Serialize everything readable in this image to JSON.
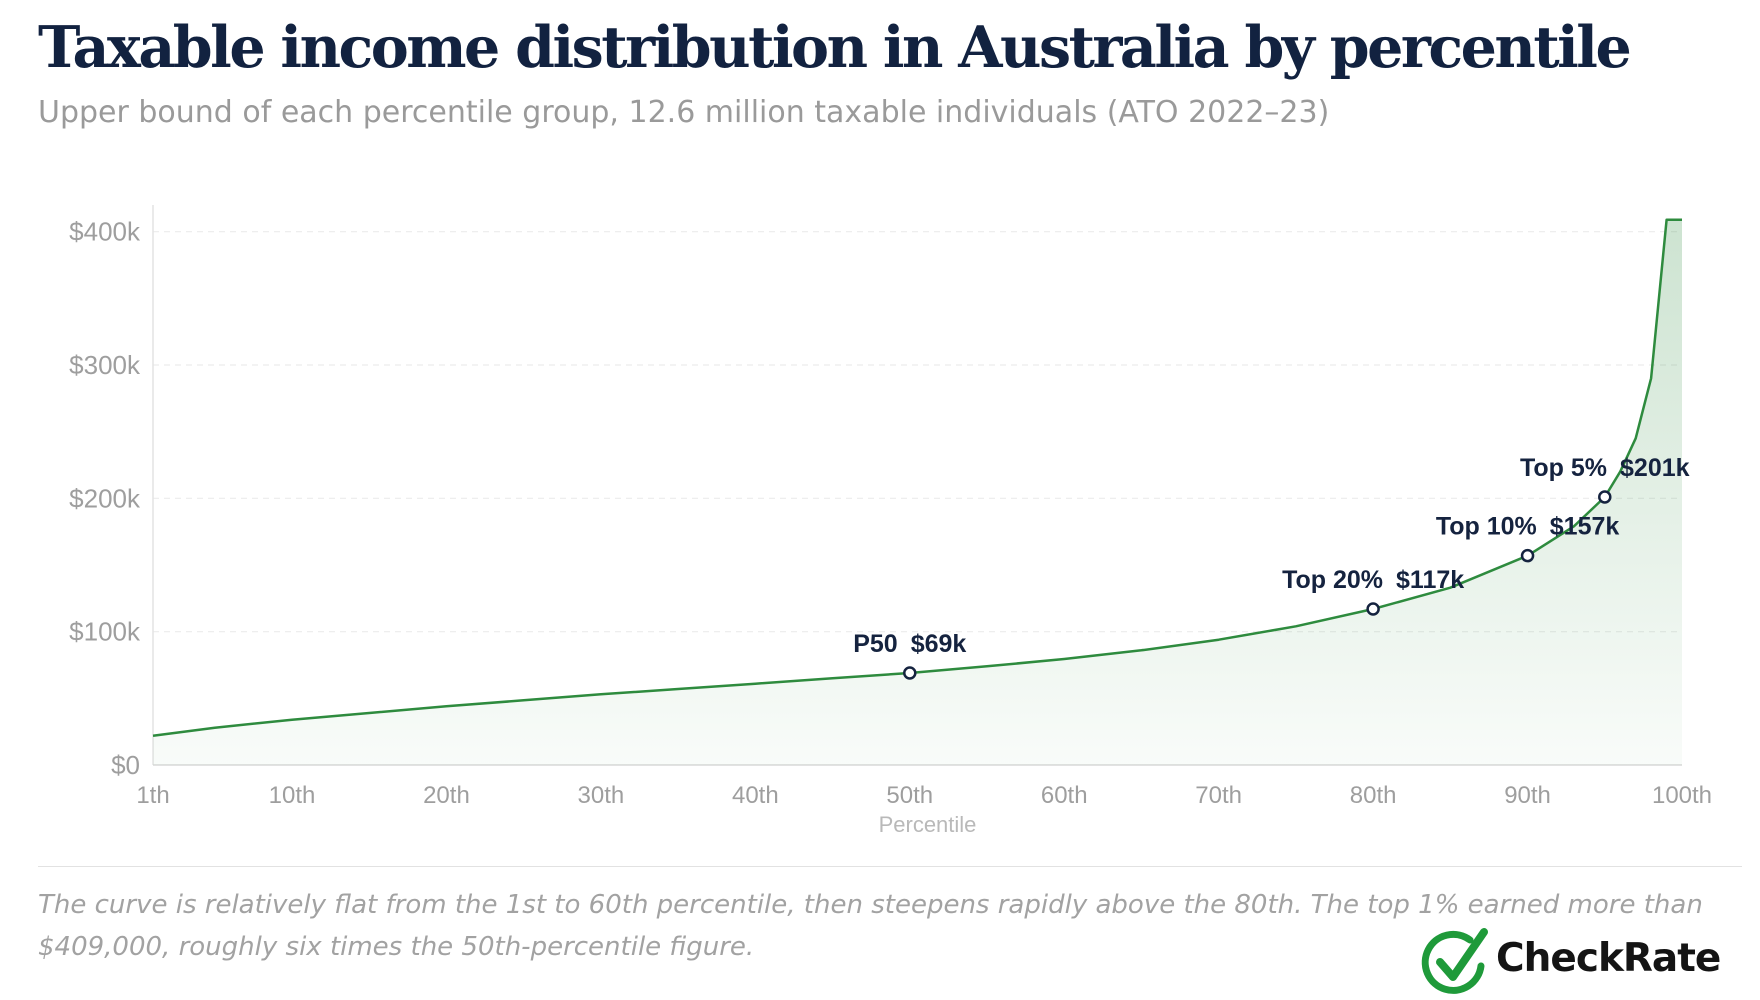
{
  "title": "Taxable income distribution in Australia by percentile",
  "subtitle": "Upper bound of each percentile group, 12.6 million taxable individuals (ATO 2022–23)",
  "note": "The curve is relatively flat from the 1st to 60th percentile, then steepens rapidly above the 80th. The top 1% earned more than $409,000, roughly six times the 50th-percentile figure.",
  "brand": {
    "name": "CheckRate",
    "logo_icon": "check-circle-icon",
    "color": "#1f9a3a"
  },
  "chart_data": {
    "type": "area",
    "xlabel": "Percentile",
    "ylabel": "",
    "xlim": [
      1,
      100
    ],
    "ylim": [
      0,
      420000
    ],
    "grid": true,
    "line_color": "#2e8b3e",
    "x_ticks": [
      1,
      10,
      20,
      30,
      40,
      50,
      60,
      70,
      80,
      90,
      100
    ],
    "x_tick_labels": [
      "1th",
      "10th",
      "20th",
      "30th",
      "40th",
      "50th",
      "60th",
      "70th",
      "80th",
      "90th",
      "100th"
    ],
    "y_ticks": [
      0,
      100000,
      200000,
      300000,
      400000
    ],
    "y_tick_labels": [
      "$0",
      "$100k",
      "$200k",
      "$300k",
      "$400k"
    ],
    "x": [
      1,
      5,
      10,
      15,
      20,
      25,
      30,
      35,
      40,
      45,
      50,
      55,
      60,
      65,
      70,
      75,
      80,
      85,
      90,
      93,
      95,
      96,
      97,
      98,
      99,
      99.5,
      100
    ],
    "values": [
      22000,
      28000,
      34000,
      39000,
      44000,
      48500,
      53000,
      57000,
      61000,
      65000,
      69000,
      74000,
      79500,
      86000,
      94000,
      104000,
      117000,
      133000,
      157000,
      179000,
      201000,
      220000,
      245000,
      290000,
      409000,
      409000,
      409000
    ],
    "annotations": [
      {
        "x": 50,
        "y": 69000,
        "label": "P50",
        "value_label": "$69k"
      },
      {
        "x": 80,
        "y": 117000,
        "label": "Top 20%",
        "value_label": "$117k"
      },
      {
        "x": 90,
        "y": 157000,
        "label": "Top 10%",
        "value_label": "$157k"
      },
      {
        "x": 95,
        "y": 201000,
        "label": "Top 5%",
        "value_label": "$201k"
      }
    ]
  }
}
